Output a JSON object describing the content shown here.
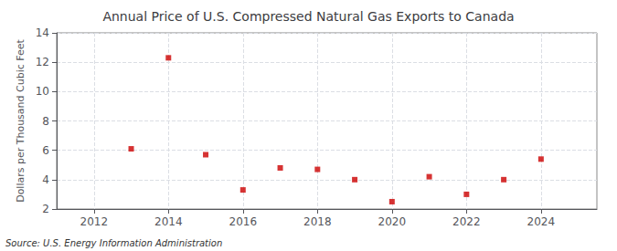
{
  "chart_data": {
    "type": "scatter",
    "title": "Annual Price of U.S. Compressed Natural Gas Exports to Canada",
    "ylabel": "Dollars per Thousand Cubic Feet",
    "annotations": [
      "Source: U.S. Energy Information Administration"
    ],
    "x": [
      2013,
      2014,
      2015,
      2016,
      2017,
      2018,
      2019,
      2020,
      2021,
      2022,
      2023,
      2024
    ],
    "values": [
      6.1,
      12.3,
      5.7,
      3.3,
      4.8,
      4.7,
      4.0,
      2.5,
      4.2,
      3.0,
      4.0,
      5.4
    ],
    "color": "#cc0000",
    "marker": "square",
    "xlim": [
      2011,
      2025.5
    ],
    "xticks": [
      2012,
      2014,
      2016,
      2018,
      2020,
      2022,
      2024
    ],
    "ylim": [
      2,
      14
    ],
    "yticks": [
      2,
      4,
      6,
      8,
      10,
      12,
      14
    ],
    "grid": true
  }
}
